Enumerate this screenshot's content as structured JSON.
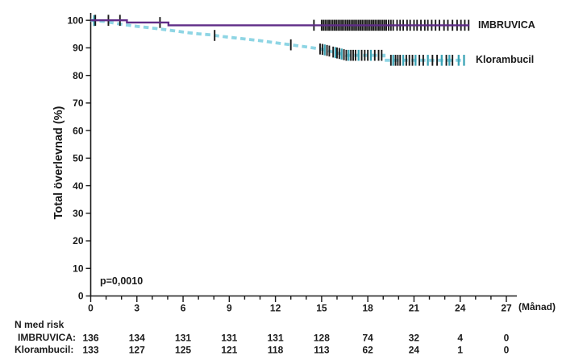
{
  "colors": {
    "imbruvica_line": "#5f2c87",
    "klorambucil_line": "#8ed5e4",
    "censor_black": "#1a1a1a",
    "censor_teal": "#3ba3b5",
    "axis": "#1a1a1a",
    "background": "#ffffff"
  },
  "chart_data": {
    "type": "line",
    "chart_kind": "kaplan-meier-survival",
    "title": "",
    "ylabel": "Total överlevnad (%)",
    "xlabel": "(Månad)",
    "xlim": [
      0,
      27
    ],
    "ylim": [
      0,
      100
    ],
    "grid": false,
    "x_major_ticks": [
      0,
      3,
      6,
      9,
      12,
      15,
      18,
      21,
      24,
      27
    ],
    "x_minor_step": 1,
    "y_ticks": [
      0,
      10,
      20,
      30,
      40,
      50,
      60,
      70,
      80,
      90,
      100
    ],
    "p_value_label": "p=0,0010",
    "legend_position": "right-of-curves",
    "series": [
      {
        "name": "IMBRUVICA",
        "color": "#5f2c87",
        "line_style": "solid",
        "line_width": 2.4,
        "points": [
          [
            0,
            100
          ],
          [
            2.35,
            100
          ],
          [
            2.35,
            99.2
          ],
          [
            5.05,
            99.2
          ],
          [
            5.05,
            98.2
          ],
          [
            24.6,
            98.2
          ]
        ],
        "censors_black": [
          0.3,
          1.15,
          1.9,
          4.5,
          14.5,
          15.0,
          15.12,
          15.24,
          15.36,
          15.48,
          15.6,
          15.72,
          15.84,
          15.96,
          16.08,
          16.2,
          16.32,
          16.44,
          16.56,
          16.68,
          16.8,
          16.92,
          17.04,
          17.16,
          17.28,
          17.4,
          17.52,
          17.64,
          17.76,
          17.88,
          18.0,
          18.12,
          18.24,
          18.36,
          18.48,
          18.6,
          18.72,
          18.84,
          18.96,
          19.08,
          19.2,
          19.35,
          19.5,
          19.65,
          19.9,
          20.1,
          20.3,
          20.55,
          20.75,
          21.0,
          21.2,
          21.45,
          21.7,
          21.9,
          22.15,
          22.4,
          22.65,
          22.95,
          23.2,
          23.5,
          23.8,
          24.05,
          24.3,
          24.55
        ],
        "censors_teal": []
      },
      {
        "name": "Klorambucil",
        "color": "#8ed5e4",
        "line_style": "dashed",
        "line_width": 3.8,
        "points": [
          [
            0,
            100
          ],
          [
            0.9,
            99.6
          ],
          [
            1.5,
            99.0
          ],
          [
            2.2,
            98.4
          ],
          [
            3.0,
            97.8
          ],
          [
            3.8,
            97.3
          ],
          [
            4.6,
            96.8
          ],
          [
            5.4,
            96.2
          ],
          [
            6.2,
            95.6
          ],
          [
            7.0,
            95.1
          ],
          [
            7.8,
            94.7
          ],
          [
            8.6,
            94.1
          ],
          [
            9.4,
            93.6
          ],
          [
            10.2,
            93.1
          ],
          [
            11.0,
            92.6
          ],
          [
            11.8,
            92.0
          ],
          [
            12.6,
            91.4
          ],
          [
            13.4,
            90.8
          ],
          [
            14.2,
            90.2
          ],
          [
            15.0,
            89.5
          ],
          [
            15.4,
            89.0
          ],
          [
            15.8,
            88.4
          ],
          [
            16.2,
            87.9
          ],
          [
            16.6,
            87.3
          ],
          [
            19.05,
            87.3
          ],
          [
            19.05,
            85.5
          ],
          [
            24.3,
            85.5
          ]
        ],
        "censors_black": [
          8.05,
          13.0,
          14.9,
          15.05,
          15.35,
          15.5,
          15.75,
          16.0,
          16.15,
          16.45,
          16.6,
          16.9,
          17.05,
          17.2,
          17.6,
          17.8,
          18.0,
          18.45,
          18.7,
          18.9,
          19.5,
          19.8,
          19.95,
          20.1,
          20.5,
          20.7,
          20.9,
          21.35,
          21.6,
          22.2,
          22.5,
          23.1,
          23.5
        ],
        "censors_teal": [
          0.22,
          15.2,
          15.9,
          16.3,
          16.75,
          17.4,
          18.2,
          19.65,
          20.3,
          21.1,
          21.9,
          22.8,
          23.3,
          23.9,
          24.25
        ]
      }
    ],
    "risk_table": {
      "title": "N med risk",
      "columns": [
        0,
        3,
        6,
        9,
        12,
        15,
        18,
        21,
        24,
        27
      ],
      "rows": [
        {
          "label": "IMBRUVICA:",
          "values": [
            "136",
            "134",
            "131",
            "131",
            "131",
            "128",
            "74",
            "32",
            "4",
            "0"
          ]
        },
        {
          "label": "Klorambucil:",
          "values": [
            "133",
            "127",
            "125",
            "121",
            "118",
            "113",
            "62",
            "24",
            "1",
            "0"
          ]
        }
      ]
    }
  }
}
